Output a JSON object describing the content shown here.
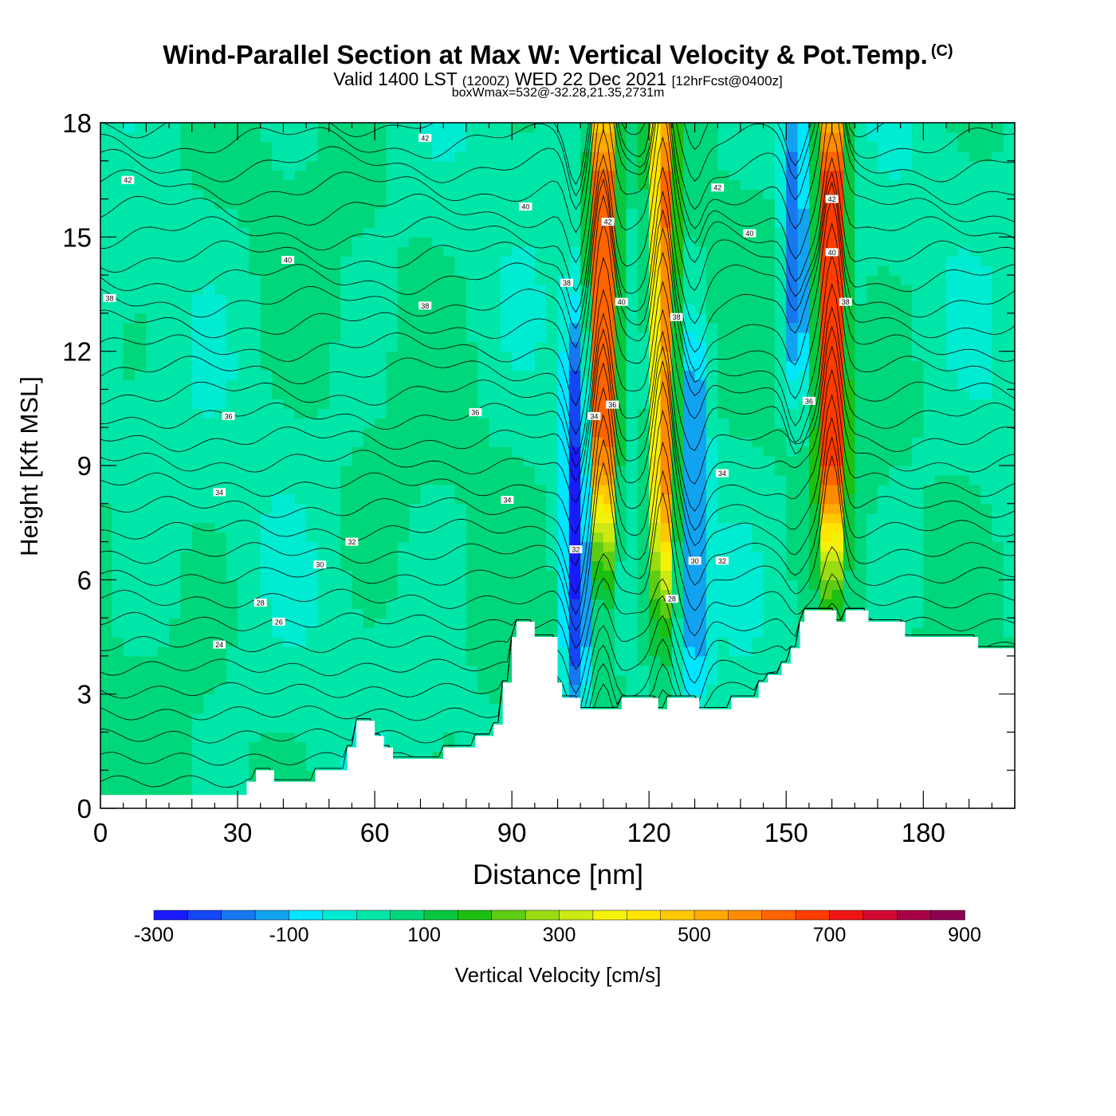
{
  "title": "Wind-Parallel Section at Max W: Vertical Velocity & Pot.Temp.",
  "copyright_mark": "(C)",
  "subtitle_main": "Valid 1400 LST",
  "subtitle_utc": "(1200Z)",
  "subtitle_date": "WED 22 Dec 2021",
  "subtitle_fcst": "[12hrFcst@0400z]",
  "box_info": "boxWmax=532@-32.28,21.35,2731m",
  "chart_data": {
    "type": "heatmap",
    "title": "Wind-Parallel Section at Max W: Vertical Velocity & Pot.Temp.",
    "xlabel": "Distance [nm]",
    "ylabel": "Height [Kft MSL]",
    "xlim": [
      0,
      200
    ],
    "ylim": [
      0,
      18
    ],
    "xticks": [
      0,
      30,
      60,
      90,
      120,
      150,
      180
    ],
    "yticks": [
      0,
      3,
      6,
      9,
      12,
      15,
      18
    ],
    "colorbar": {
      "label": "Vertical Velocity [cm/s]",
      "min": -300,
      "max": 900,
      "step": 50,
      "tick_labels": [
        "-300",
        "-100",
        "100",
        "300",
        "500",
        "700",
        "900"
      ],
      "colors": [
        "#1a1aff",
        "#1446f5",
        "#1777ef",
        "#12a3f0",
        "#00e6ff",
        "#00ecd2",
        "#00e6a8",
        "#00d77a",
        "#08c63e",
        "#1cc010",
        "#5ecc12",
        "#9adc12",
        "#ccea12",
        "#f4f20a",
        "#ffe500",
        "#ffc800",
        "#ffaa00",
        "#ff8c00",
        "#ff6400",
        "#ff3c00",
        "#f01414",
        "#d20a32",
        "#a80046",
        "#8c0050"
      ]
    },
    "velocity_features": [
      {
        "x": 104,
        "z_bottom": 3,
        "z_top": 12,
        "w": -280
      },
      {
        "x": 110,
        "z_bottom": 8,
        "z_top": 18,
        "w": 750
      },
      {
        "x": 123,
        "z_bottom": 7,
        "z_top": 18,
        "w": 600
      },
      {
        "x": 130,
        "z_bottom": 4,
        "z_top": 11.5,
        "w": -200
      },
      {
        "x": 152,
        "z_bottom": 12,
        "z_top": 18,
        "w": -220
      },
      {
        "x": 160,
        "z_bottom": 8,
        "z_top": 18,
        "w": 800
      }
    ],
    "terrain": [
      [
        0,
        0.35
      ],
      [
        32,
        0.35
      ],
      [
        32,
        0.7
      ],
      [
        34,
        0.7
      ],
      [
        34,
        1
      ],
      [
        38,
        1
      ],
      [
        38,
        0.7
      ],
      [
        47,
        0.7
      ],
      [
        47,
        1
      ],
      [
        54,
        1
      ],
      [
        54,
        1.6
      ],
      [
        56,
        1.6
      ],
      [
        56,
        2.3
      ],
      [
        60,
        2.3
      ],
      [
        60,
        1.9
      ],
      [
        62,
        1.9
      ],
      [
        62,
        1.6
      ],
      [
        64,
        1.6
      ],
      [
        64,
        1.3
      ],
      [
        75,
        1.3
      ],
      [
        75,
        1.6
      ],
      [
        82,
        1.6
      ],
      [
        82,
        1.9
      ],
      [
        86,
        1.9
      ],
      [
        86,
        2.2
      ],
      [
        88,
        2.2
      ],
      [
        88,
        3.3
      ],
      [
        90,
        3.3
      ],
      [
        90,
        4.5
      ],
      [
        91,
        4.5
      ],
      [
        91,
        4.9
      ],
      [
        95,
        4.9
      ],
      [
        95,
        4.5
      ],
      [
        100,
        4.5
      ],
      [
        100,
        3.3
      ],
      [
        101,
        3.3
      ],
      [
        101,
        2.9
      ],
      [
        105,
        2.9
      ],
      [
        105,
        2.6
      ],
      [
        114,
        2.6
      ],
      [
        114,
        2.9
      ],
      [
        122,
        2.9
      ],
      [
        122,
        2.6
      ],
      [
        124,
        2.6
      ],
      [
        124,
        2.9
      ],
      [
        131,
        2.9
      ],
      [
        131,
        2.6
      ],
      [
        138,
        2.6
      ],
      [
        138,
        2.9
      ],
      [
        144,
        2.9
      ],
      [
        144,
        3.3
      ],
      [
        146,
        3.3
      ],
      [
        146,
        3.5
      ],
      [
        149,
        3.5
      ],
      [
        149,
        3.8
      ],
      [
        151,
        3.8
      ],
      [
        151,
        4.2
      ],
      [
        153,
        4.2
      ],
      [
        153,
        4.9
      ],
      [
        154,
        4.9
      ],
      [
        154,
        5.2
      ],
      [
        161,
        5.2
      ],
      [
        161,
        4.9
      ],
      [
        163,
        4.9
      ],
      [
        163,
        5.2
      ],
      [
        168,
        5.2
      ],
      [
        168,
        4.9
      ],
      [
        176,
        4.9
      ],
      [
        176,
        4.5
      ],
      [
        192,
        4.5
      ],
      [
        192,
        4.2
      ],
      [
        200,
        4.2
      ]
    ],
    "isentrope_labels": [
      {
        "label": "42",
        "x": 6,
        "z": 16.5
      },
      {
        "label": "42",
        "x": 71,
        "z": 17.6
      },
      {
        "label": "40",
        "x": 93,
        "z": 15.8
      },
      {
        "label": "40",
        "x": 41,
        "z": 14.4
      },
      {
        "label": "38",
        "x": 2,
        "z": 13.4
      },
      {
        "label": "38",
        "x": 71,
        "z": 13.2
      },
      {
        "label": "36",
        "x": 28,
        "z": 10.3
      },
      {
        "label": "36",
        "x": 82,
        "z": 10.4
      },
      {
        "label": "34",
        "x": 26,
        "z": 8.3
      },
      {
        "label": "34",
        "x": 89,
        "z": 8.1
      },
      {
        "label": "32",
        "x": 55,
        "z": 7.0
      },
      {
        "label": "30",
        "x": 48,
        "z": 6.4
      },
      {
        "label": "28",
        "x": 35,
        "z": 5.4
      },
      {
        "label": "26",
        "x": 39,
        "z": 4.9
      },
      {
        "label": "24",
        "x": 26,
        "z": 4.3
      },
      {
        "label": "42",
        "x": 111,
        "z": 15.4
      },
      {
        "label": "40",
        "x": 114,
        "z": 13.3
      },
      {
        "label": "38",
        "x": 102,
        "z": 13.8
      },
      {
        "label": "36",
        "x": 112,
        "z": 10.6
      },
      {
        "label": "34",
        "x": 108,
        "z": 10.3
      },
      {
        "label": "32",
        "x": 104,
        "z": 6.8
      },
      {
        "label": "42",
        "x": 135,
        "z": 16.3
      },
      {
        "label": "40",
        "x": 142,
        "z": 15.1
      },
      {
        "label": "38",
        "x": 126,
        "z": 12.9
      },
      {
        "label": "36",
        "x": 155,
        "z": 10.7
      },
      {
        "label": "34",
        "x": 136,
        "z": 8.8
      },
      {
        "label": "32",
        "x": 136,
        "z": 6.5
      },
      {
        "label": "30",
        "x": 130,
        "z": 6.5
      },
      {
        "label": "28",
        "x": 125,
        "z": 5.5
      },
      {
        "label": "42",
        "x": 160,
        "z": 16.0
      },
      {
        "label": "40",
        "x": 160,
        "z": 14.6
      },
      {
        "label": "38",
        "x": 163,
        "z": 13.3
      }
    ]
  }
}
